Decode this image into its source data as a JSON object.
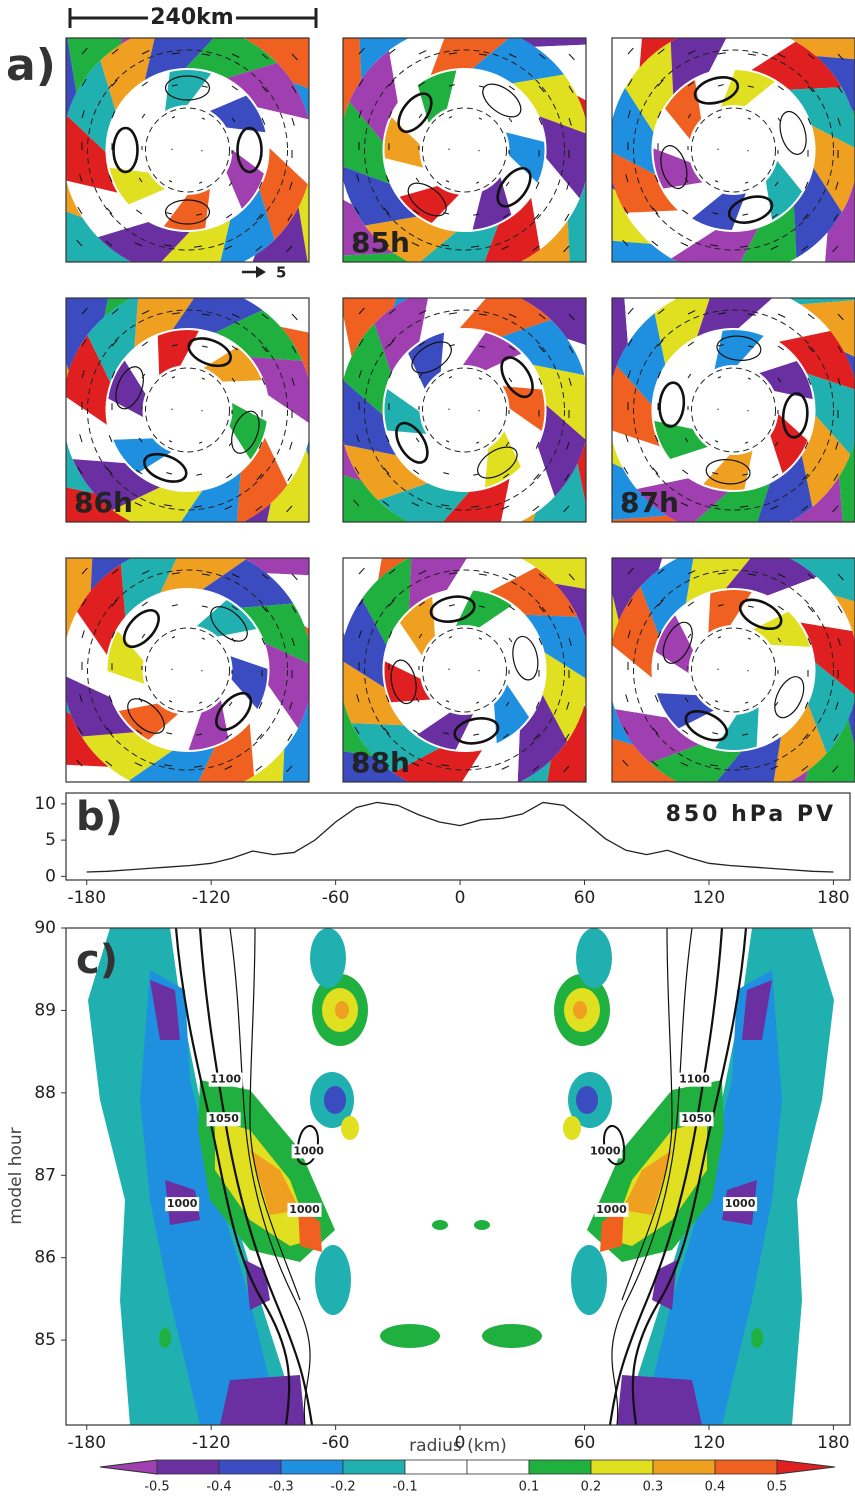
{
  "chart_data": [
    {
      "type": "panels",
      "label": "a)",
      "scale_label": "240km",
      "vector_label": "5",
      "panel_labels": [
        null,
        "85h",
        null,
        "86h",
        null,
        "87h",
        null,
        "88h",
        null
      ]
    },
    {
      "type": "line",
      "label": "b)",
      "title": "850 hPa PV",
      "color": "#222222",
      "x": [
        -180,
        -170,
        -160,
        -150,
        -140,
        -130,
        -120,
        -110,
        -100,
        -90,
        -80,
        -70,
        -60,
        -50,
        -40,
        -30,
        -20,
        -10,
        0,
        10,
        20,
        30,
        40,
        50,
        60,
        70,
        80,
        90,
        100,
        110,
        120,
        130,
        140,
        150,
        160,
        170,
        180
      ],
      "values": [
        0.6,
        0.7,
        0.9,
        1.1,
        1.3,
        1.5,
        1.8,
        2.5,
        3.5,
        3.0,
        3.3,
        5.0,
        7.5,
        9.5,
        10.2,
        9.8,
        8.5,
        7.5,
        7.0,
        7.8,
        8.0,
        8.6,
        10.2,
        9.8,
        7.6,
        5.2,
        3.6,
        3.0,
        3.6,
        2.6,
        1.8,
        1.5,
        1.3,
        1.1,
        0.9,
        0.7,
        0.6
      ],
      "xlim": [
        -190,
        188
      ],
      "ylim": [
        -0.5,
        11.5
      ],
      "xticks": [
        -180,
        -120,
        -60,
        0,
        60,
        120,
        180
      ],
      "yticks": [
        0,
        5,
        10
      ]
    },
    {
      "type": "contour",
      "label": "c)",
      "xlabel": "radius (km)",
      "ylabel": "model hour",
      "xlim": [
        -190,
        188
      ],
      "ylim": [
        83.97,
        90
      ],
      "xticks": [
        -180,
        -120,
        -60,
        0,
        60,
        120,
        180
      ],
      "yticks": [
        85,
        86,
        87,
        88,
        89,
        90
      ],
      "contour_labels": [
        {
          "value": 1100,
          "x": -113,
          "y": 88.16
        },
        {
          "value": 1050,
          "x": -114,
          "y": 87.68
        },
        {
          "value": 1000,
          "x": -73,
          "y": 87.29
        },
        {
          "value": 1000,
          "x": -134,
          "y": 86.65
        },
        {
          "value": 1000,
          "x": -75,
          "y": 86.58
        },
        {
          "value": 1100,
          "x": 113,
          "y": 88.16
        },
        {
          "value": 1050,
          "x": 114,
          "y": 87.68
        },
        {
          "value": 1000,
          "x": 70,
          "y": 87.29
        },
        {
          "value": 1000,
          "x": 135,
          "y": 86.65
        },
        {
          "value": 1000,
          "x": 73,
          "y": 86.58
        }
      ]
    },
    {
      "type": "colorbar",
      "levels": [
        -0.5,
        -0.4,
        -0.3,
        -0.2,
        -0.1,
        0,
        0.1,
        0.2,
        0.3,
        0.4,
        0.5
      ],
      "colors": [
        "#a040b0",
        "#6a2fa0",
        "#3b4cc0",
        "#1f90e0",
        "#20b0b0",
        "#ffffff",
        "#ffffff",
        "#20b040",
        "#e0e020",
        "#f0a020",
        "#f06020",
        "#e02020"
      ]
    }
  ]
}
